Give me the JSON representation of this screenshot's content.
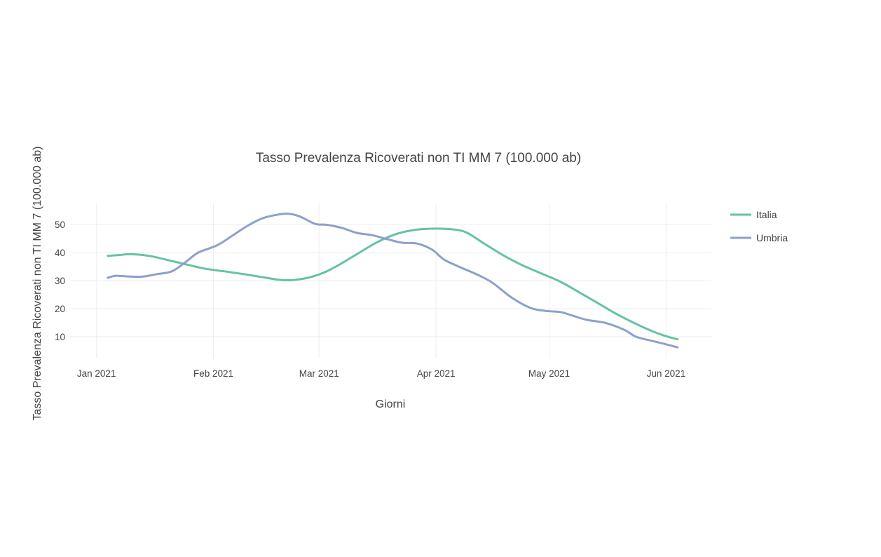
{
  "chart_data": {
    "type": "line",
    "title": "Tasso Prevalenza Ricoverati non TI MM 7 (100.000 ab)",
    "xlabel": "Giorni",
    "ylabel": "Tasso Prevalenza Ricoverati non TI MM 7 (100.000 ab)",
    "x_ticks": [
      {
        "label": "Jan 2021",
        "date": "2021-01-01"
      },
      {
        "label": "Feb 2021",
        "date": "2021-02-01"
      },
      {
        "label": "Mar 2021",
        "date": "2021-03-01"
      },
      {
        "label": "Apr 2021",
        "date": "2021-04-01"
      },
      {
        "label": "May 2021",
        "date": "2021-05-01"
      },
      {
        "label": "Jun 2021",
        "date": "2021-06-01"
      }
    ],
    "xlim": [
      "2020-12-25",
      "2021-06-13"
    ],
    "y_ticks": [
      10,
      20,
      30,
      40,
      50
    ],
    "ylim": [
      2.5,
      57.5
    ],
    "grid": true,
    "legend_position": "right",
    "series": [
      {
        "name": "Italia",
        "color": "#66c2a5",
        "points": [
          [
            "2021-01-04",
            38.8
          ],
          [
            "2021-01-07",
            39.1
          ],
          [
            "2021-01-10",
            39.4
          ],
          [
            "2021-01-15",
            38.8
          ],
          [
            "2021-01-20",
            37.3
          ],
          [
            "2021-01-25",
            35.7
          ],
          [
            "2021-01-30",
            34.2
          ],
          [
            "2021-02-05",
            33.1
          ],
          [
            "2021-02-10",
            32.1
          ],
          [
            "2021-02-15",
            31.0
          ],
          [
            "2021-02-19",
            30.2
          ],
          [
            "2021-02-22",
            30.2
          ],
          [
            "2021-02-26",
            31.0
          ],
          [
            "2021-03-02",
            32.7
          ],
          [
            "2021-03-06",
            35.4
          ],
          [
            "2021-03-11",
            39.4
          ],
          [
            "2021-03-16",
            43.4
          ],
          [
            "2021-03-21",
            46.4
          ],
          [
            "2021-03-26",
            48.0
          ],
          [
            "2021-03-31",
            48.5
          ],
          [
            "2021-04-05",
            48.3
          ],
          [
            "2021-04-09",
            47.2
          ],
          [
            "2021-04-14",
            43.0
          ],
          [
            "2021-04-19",
            38.9
          ],
          [
            "2021-04-24",
            35.4
          ],
          [
            "2021-04-29",
            32.5
          ],
          [
            "2021-05-04",
            29.6
          ],
          [
            "2021-05-09",
            25.8
          ],
          [
            "2021-05-14",
            21.9
          ],
          [
            "2021-05-19",
            18.0
          ],
          [
            "2021-05-24",
            14.6
          ],
          [
            "2021-05-29",
            11.6
          ],
          [
            "2021-06-01",
            10.2
          ],
          [
            "2021-06-04",
            9.1
          ]
        ]
      },
      {
        "name": "Umbria",
        "color": "#8da0cb",
        "points": [
          [
            "2021-01-04",
            31.0
          ],
          [
            "2021-01-06",
            31.7
          ],
          [
            "2021-01-09",
            31.5
          ],
          [
            "2021-01-13",
            31.4
          ],
          [
            "2021-01-17",
            32.3
          ],
          [
            "2021-01-21",
            33.3
          ],
          [
            "2021-01-25",
            37.0
          ],
          [
            "2021-01-28",
            40.0
          ],
          [
            "2021-02-02",
            42.6
          ],
          [
            "2021-02-06",
            46.0
          ],
          [
            "2021-02-10",
            49.5
          ],
          [
            "2021-02-14",
            52.2
          ],
          [
            "2021-02-18",
            53.5
          ],
          [
            "2021-02-21",
            53.8
          ],
          [
            "2021-02-24",
            52.8
          ],
          [
            "2021-02-28",
            50.2
          ],
          [
            "2021-03-03",
            49.9
          ],
          [
            "2021-03-07",
            48.8
          ],
          [
            "2021-03-11",
            47.0
          ],
          [
            "2021-03-15",
            46.2
          ],
          [
            "2021-03-19",
            44.8
          ],
          [
            "2021-03-23",
            43.5
          ],
          [
            "2021-03-27",
            43.2
          ],
          [
            "2021-03-31",
            41.0
          ],
          [
            "2021-04-03",
            37.6
          ],
          [
            "2021-04-07",
            35.0
          ],
          [
            "2021-04-12",
            32.1
          ],
          [
            "2021-04-16",
            29.2
          ],
          [
            "2021-04-21",
            24.0
          ],
          [
            "2021-04-26",
            20.3
          ],
          [
            "2021-04-30",
            19.2
          ],
          [
            "2021-05-04",
            18.8
          ],
          [
            "2021-05-07",
            17.6
          ],
          [
            "2021-05-11",
            16.0
          ],
          [
            "2021-05-16",
            14.9
          ],
          [
            "2021-05-21",
            12.4
          ],
          [
            "2021-05-24",
            10.0
          ],
          [
            "2021-05-28",
            8.6
          ],
          [
            "2021-06-01",
            7.3
          ],
          [
            "2021-06-04",
            6.2
          ]
        ]
      }
    ]
  }
}
